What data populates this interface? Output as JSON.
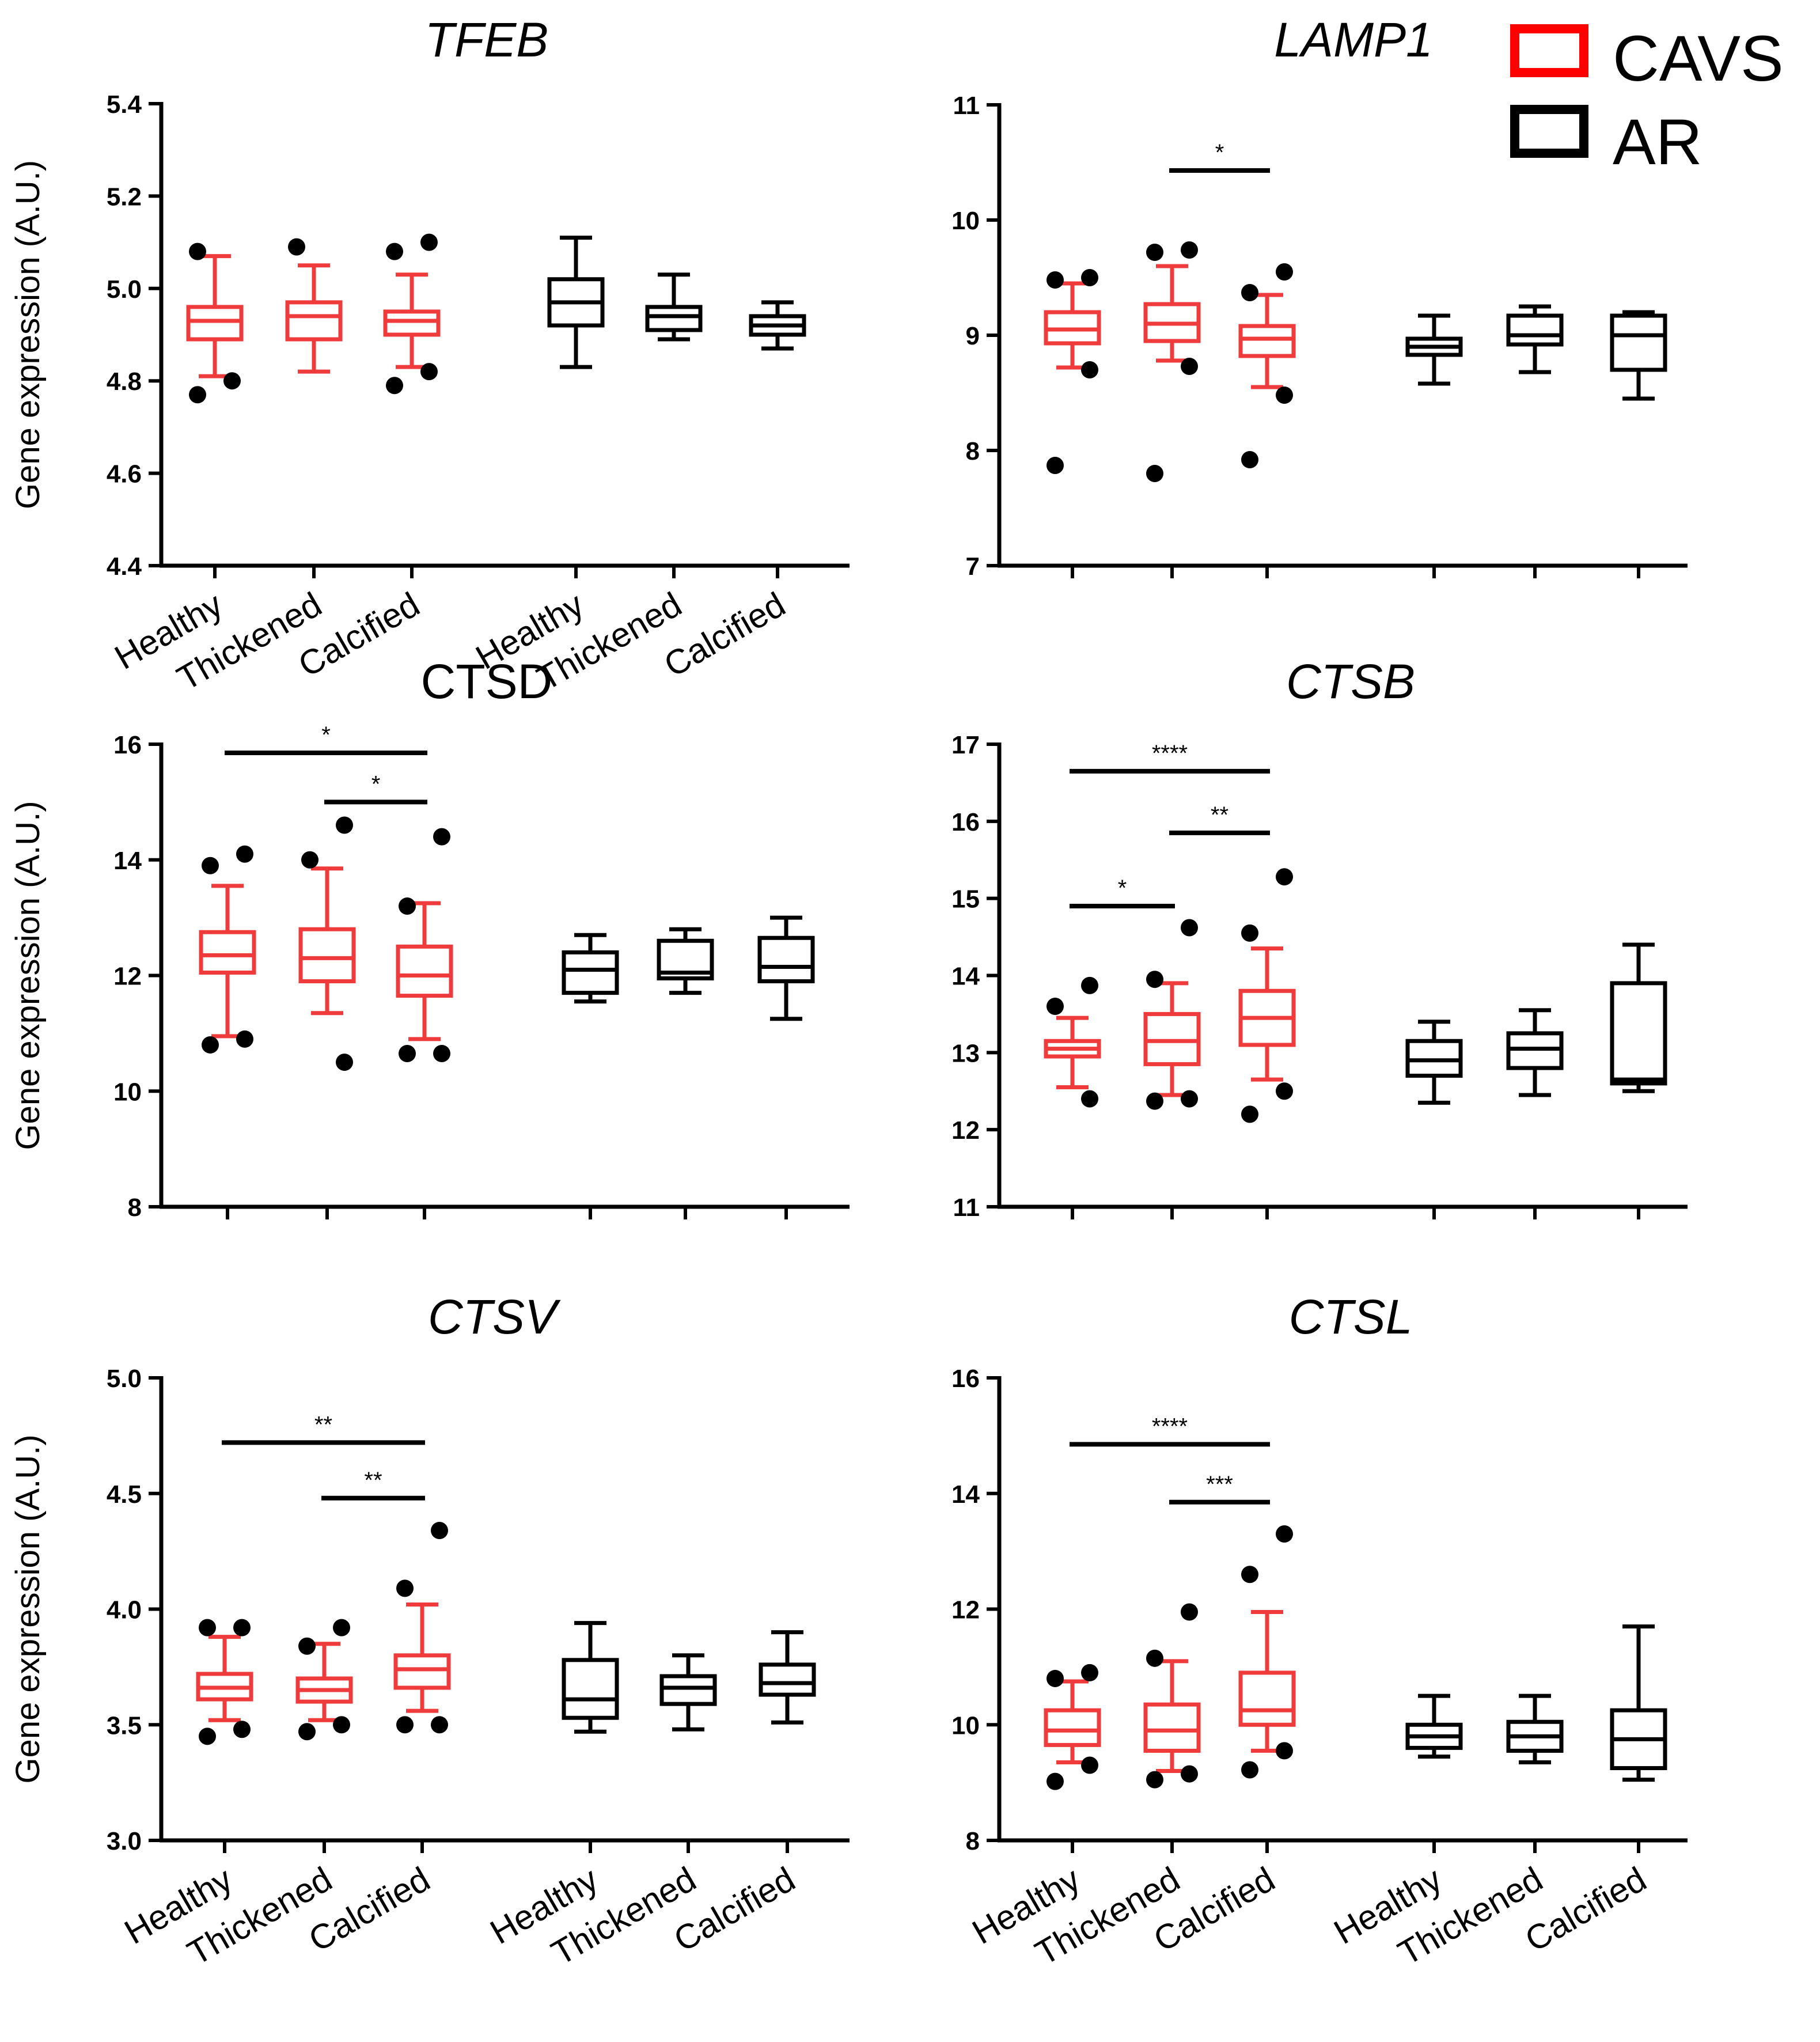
{
  "legend": {
    "items": [
      {
        "label": "CAVS",
        "color": "#ff0000"
      },
      {
        "label": "AR",
        "color": "#000000"
      }
    ]
  },
  "colors": {
    "cavs": "#ef3b3b",
    "ar": "#000000"
  },
  "common": {
    "ylabel": "Gene expression (A.U.)",
    "categories": [
      "Healthy",
      "Thickened",
      "Calcified",
      "Healthy",
      "Thickened",
      "Calcified"
    ],
    "groups": [
      "CAVS",
      "CAVS",
      "CAVS",
      "AR",
      "AR",
      "AR"
    ]
  },
  "chart_data": [
    {
      "type": "box",
      "title": "TFEB",
      "title_italic": true,
      "ylabel": "Gene expression (A.U.)",
      "ylim": [
        4.4,
        5.4
      ],
      "yticks": [
        "4.4",
        "4.6",
        "4.8",
        "5.0",
        "5.2",
        "5.4"
      ],
      "categories": [
        "Healthy",
        "Thickened",
        "Calcified",
        "Healthy",
        "Thickened",
        "Calcified"
      ],
      "boxes": [
        {
          "group": "CAVS",
          "min": 4.81,
          "q1": 4.89,
          "median": 4.93,
          "q3": 4.96,
          "max": 5.07,
          "outliers": [
            4.77,
            4.8,
            5.08
          ]
        },
        {
          "group": "CAVS",
          "min": 4.82,
          "q1": 4.89,
          "median": 4.94,
          "q3": 4.97,
          "max": 5.05,
          "outliers": [
            5.09
          ]
        },
        {
          "group": "CAVS",
          "min": 4.83,
          "q1": 4.9,
          "median": 4.93,
          "q3": 4.95,
          "max": 5.03,
          "outliers": [
            4.79,
            4.82,
            5.08,
            5.1
          ]
        },
        {
          "group": "AR",
          "min": 4.83,
          "q1": 4.92,
          "median": 4.97,
          "q3": 5.02,
          "max": 5.11,
          "outliers": []
        },
        {
          "group": "AR",
          "min": 4.89,
          "q1": 4.91,
          "median": 4.94,
          "q3": 4.96,
          "max": 5.03,
          "outliers": []
        },
        {
          "group": "AR",
          "min": 4.87,
          "q1": 4.9,
          "median": 4.92,
          "q3": 4.94,
          "max": 4.97,
          "outliers": []
        }
      ],
      "significance": []
    },
    {
      "type": "box",
      "title": "LAMP1",
      "title_italic": true,
      "ylabel": "",
      "ylim": [
        7,
        11
      ],
      "yticks": [
        "7",
        "8",
        "9",
        "10",
        "11"
      ],
      "categories": [
        "",
        "",
        "",
        "",
        "",
        ""
      ],
      "boxes": [
        {
          "group": "CAVS",
          "min": 8.72,
          "q1": 8.93,
          "median": 9.05,
          "q3": 9.2,
          "max": 9.45,
          "outliers": [
            7.87,
            8.7,
            9.48,
            9.5
          ]
        },
        {
          "group": "CAVS",
          "min": 8.78,
          "q1": 8.95,
          "median": 9.1,
          "q3": 9.27,
          "max": 9.6,
          "outliers": [
            7.8,
            8.73,
            9.72,
            9.74
          ]
        },
        {
          "group": "CAVS",
          "min": 8.55,
          "q1": 8.82,
          "median": 8.97,
          "q3": 9.08,
          "max": 9.35,
          "outliers": [
            7.92,
            8.48,
            9.37,
            9.55
          ]
        },
        {
          "group": "AR",
          "min": 8.58,
          "q1": 8.83,
          "median": 8.9,
          "q3": 8.97,
          "max": 9.17,
          "outliers": []
        },
        {
          "group": "AR",
          "min": 8.68,
          "q1": 8.92,
          "median": 9.0,
          "q3": 9.17,
          "max": 9.25,
          "outliers": []
        },
        {
          "group": "AR",
          "min": 8.45,
          "q1": 8.7,
          "median": 9.0,
          "q3": 9.17,
          "max": 9.2,
          "outliers": []
        }
      ],
      "significance": [
        {
          "from": 1,
          "to": 2,
          "y": 10.43,
          "label": "*"
        }
      ]
    },
    {
      "type": "box",
      "title": "CTSD",
      "title_italic": false,
      "ylabel": "Gene expression (A.U.)",
      "ylim": [
        8,
        16
      ],
      "yticks": [
        "8",
        "10",
        "12",
        "14",
        "16"
      ],
      "categories": [
        "",
        "",
        "",
        "",
        "",
        ""
      ],
      "boxes": [
        {
          "group": "CAVS",
          "min": 10.95,
          "q1": 12.05,
          "median": 12.35,
          "q3": 12.75,
          "max": 13.55,
          "outliers": [
            10.8,
            10.9,
            13.9,
            14.1
          ]
        },
        {
          "group": "CAVS",
          "min": 11.35,
          "q1": 11.9,
          "median": 12.3,
          "q3": 12.8,
          "max": 13.85,
          "outliers": [
            10.5,
            14.0,
            14.6
          ]
        },
        {
          "group": "CAVS",
          "min": 10.9,
          "q1": 11.65,
          "median": 12.0,
          "q3": 12.5,
          "max": 13.25,
          "outliers": [
            10.65,
            10.65,
            13.2,
            14.4
          ]
        },
        {
          "group": "AR",
          "min": 11.55,
          "q1": 11.7,
          "median": 12.1,
          "q3": 12.4,
          "max": 12.7,
          "outliers": []
        },
        {
          "group": "AR",
          "min": 11.7,
          "q1": 11.95,
          "median": 12.05,
          "q3": 12.6,
          "max": 12.8,
          "outliers": []
        },
        {
          "group": "AR",
          "min": 11.25,
          "q1": 11.9,
          "median": 12.15,
          "q3": 12.65,
          "max": 13.0,
          "outliers": []
        }
      ],
      "significance": [
        {
          "from": 0,
          "to": 2,
          "y": 15.85,
          "label": "*"
        },
        {
          "from": 1,
          "to": 2,
          "y": 15.0,
          "label": "*"
        }
      ]
    },
    {
      "type": "box",
      "title": "CTSB",
      "title_italic": true,
      "ylabel": "",
      "ylim": [
        11,
        17
      ],
      "yticks": [
        "11",
        "12",
        "13",
        "14",
        "15",
        "16",
        "17"
      ],
      "categories": [
        "",
        "",
        "",
        "",
        "",
        ""
      ],
      "boxes": [
        {
          "group": "CAVS",
          "min": 12.55,
          "q1": 12.95,
          "median": 13.05,
          "q3": 13.15,
          "max": 13.45,
          "outliers": [
            12.4,
            13.6,
            13.87
          ]
        },
        {
          "group": "CAVS",
          "min": 12.45,
          "q1": 12.85,
          "median": 13.15,
          "q3": 13.5,
          "max": 13.9,
          "outliers": [
            12.37,
            12.4,
            13.95,
            14.62
          ]
        },
        {
          "group": "CAVS",
          "min": 12.65,
          "q1": 13.1,
          "median": 13.45,
          "q3": 13.8,
          "max": 14.35,
          "outliers": [
            12.2,
            12.5,
            14.55,
            15.28
          ]
        },
        {
          "group": "AR",
          "min": 12.35,
          "q1": 12.7,
          "median": 12.9,
          "q3": 13.15,
          "max": 13.4,
          "outliers": []
        },
        {
          "group": "AR",
          "min": 12.45,
          "q1": 12.8,
          "median": 13.05,
          "q3": 13.25,
          "max": 13.55,
          "outliers": []
        },
        {
          "group": "AR",
          "min": 12.5,
          "q1": 12.6,
          "median": 12.65,
          "q3": 13.9,
          "max": 14.4,
          "outliers": []
        }
      ],
      "significance": [
        {
          "from": 0,
          "to": 2,
          "y": 16.65,
          "label": "****"
        },
        {
          "from": 1,
          "to": 2,
          "y": 15.85,
          "label": "**"
        },
        {
          "from": 0,
          "to": 1,
          "y": 14.9,
          "label": "*"
        }
      ]
    },
    {
      "type": "box",
      "title": "CTSV",
      "title_italic": true,
      "ylabel": "Gene expression (A.U.)",
      "ylim": [
        3.0,
        5.0
      ],
      "yticks": [
        "3.0",
        "3.5",
        "4.0",
        "4.5",
        "5.0"
      ],
      "categories": [
        "Healthy",
        "Thickened",
        "Calcified",
        "Healthy",
        "Thickened",
        "Calcified"
      ],
      "boxes": [
        {
          "group": "CAVS",
          "min": 3.52,
          "q1": 3.61,
          "median": 3.66,
          "q3": 3.72,
          "max": 3.88,
          "outliers": [
            3.45,
            3.48,
            3.92,
            3.92
          ]
        },
        {
          "group": "CAVS",
          "min": 3.52,
          "q1": 3.6,
          "median": 3.65,
          "q3": 3.7,
          "max": 3.85,
          "outliers": [
            3.47,
            3.5,
            3.84,
            3.92
          ]
        },
        {
          "group": "CAVS",
          "min": 3.56,
          "q1": 3.66,
          "median": 3.74,
          "q3": 3.8,
          "max": 4.02,
          "outliers": [
            3.5,
            3.5,
            4.09,
            4.34
          ]
        },
        {
          "group": "AR",
          "min": 3.47,
          "q1": 3.53,
          "median": 3.61,
          "q3": 3.78,
          "max": 3.94,
          "outliers": []
        },
        {
          "group": "AR",
          "min": 3.48,
          "q1": 3.59,
          "median": 3.66,
          "q3": 3.71,
          "max": 3.8,
          "outliers": []
        },
        {
          "group": "AR",
          "min": 3.51,
          "q1": 3.63,
          "median": 3.68,
          "q3": 3.76,
          "max": 3.9,
          "outliers": []
        }
      ],
      "significance": [
        {
          "from": 0,
          "to": 2,
          "y": 4.72,
          "label": "**"
        },
        {
          "from": 1,
          "to": 2,
          "y": 4.48,
          "label": "**"
        }
      ]
    },
    {
      "type": "box",
      "title": "CTSL",
      "title_italic": true,
      "ylabel": "",
      "ylim": [
        8,
        16
      ],
      "yticks": [
        "8",
        "10",
        "12",
        "14",
        "16"
      ],
      "categories": [
        "Healthy",
        "Thickened",
        "Calcified",
        "Healthy",
        "Thickened",
        "Calcified"
      ],
      "boxes": [
        {
          "group": "CAVS",
          "min": 9.35,
          "q1": 9.65,
          "median": 9.9,
          "q3": 10.25,
          "max": 10.75,
          "outliers": [
            9.02,
            9.3,
            10.8,
            10.9
          ]
        },
        {
          "group": "CAVS",
          "min": 9.2,
          "q1": 9.55,
          "median": 9.9,
          "q3": 10.35,
          "max": 11.1,
          "outliers": [
            9.05,
            9.15,
            11.15,
            11.95
          ]
        },
        {
          "group": "CAVS",
          "min": 9.55,
          "q1": 10.0,
          "median": 10.25,
          "q3": 10.9,
          "max": 11.95,
          "outliers": [
            9.22,
            9.55,
            12.6,
            13.3
          ]
        },
        {
          "group": "AR",
          "min": 9.45,
          "q1": 9.6,
          "median": 9.8,
          "q3": 10.0,
          "max": 10.5,
          "outliers": []
        },
        {
          "group": "AR",
          "min": 9.35,
          "q1": 9.55,
          "median": 9.8,
          "q3": 10.05,
          "max": 10.5,
          "outliers": []
        },
        {
          "group": "AR",
          "min": 9.05,
          "q1": 9.25,
          "median": 9.75,
          "q3": 10.25,
          "max": 11.7,
          "outliers": []
        }
      ],
      "significance": [
        {
          "from": 0,
          "to": 2,
          "y": 14.85,
          "label": "****"
        },
        {
          "from": 1,
          "to": 2,
          "y": 13.85,
          "label": "***"
        }
      ]
    }
  ]
}
